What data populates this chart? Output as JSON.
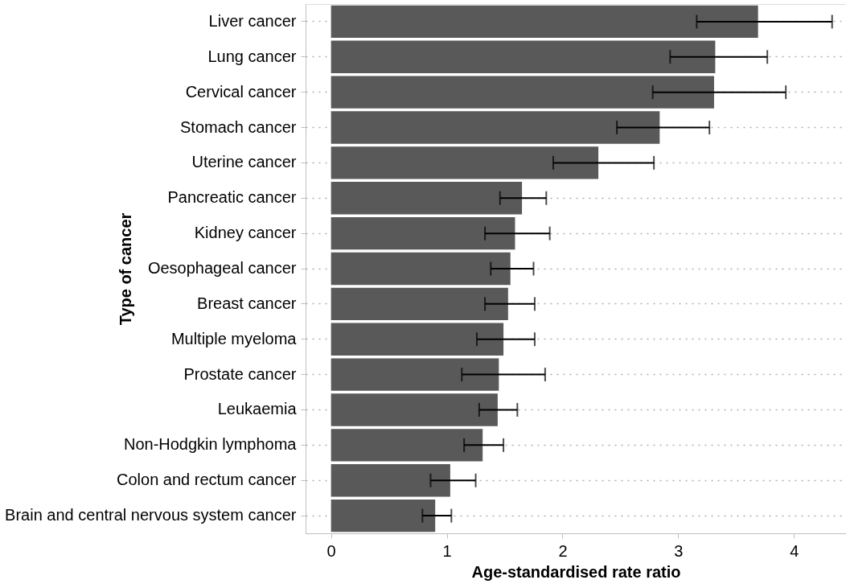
{
  "chart_data": {
    "type": "bar",
    "orientation": "horizontal",
    "xlabel": "Age-standardised rate ratio",
    "ylabel": "Type of cancer",
    "categories": [
      "Liver cancer",
      "Lung cancer",
      "Cervical cancer",
      "Stomach cancer",
      "Uterine cancer",
      "Pancreatic cancer",
      "Kidney cancer",
      "Oesophageal cancer",
      "Breast cancer",
      "Multiple myeloma",
      "Prostate cancer",
      "Leukaemia",
      "Non-Hodgkin lymphoma",
      "Colon and rectum cancer",
      "Brain and central nervous system cancer"
    ],
    "values": [
      3.69,
      3.32,
      3.31,
      2.84,
      2.31,
      1.65,
      1.59,
      1.55,
      1.53,
      1.49,
      1.45,
      1.44,
      1.31,
      1.03,
      0.9
    ],
    "errors": [
      [
        3.16,
        4.33
      ],
      [
        2.93,
        3.77
      ],
      [
        2.78,
        3.93
      ],
      [
        2.47,
        3.27
      ],
      [
        1.92,
        2.79
      ],
      [
        1.46,
        1.86
      ],
      [
        1.33,
        1.89
      ],
      [
        1.38,
        1.75
      ],
      [
        1.33,
        1.76
      ],
      [
        1.26,
        1.76
      ],
      [
        1.13,
        1.85
      ],
      [
        1.28,
        1.61
      ],
      [
        1.15,
        1.49
      ],
      [
        0.86,
        1.25
      ],
      [
        0.79,
        1.04
      ]
    ],
    "color": "#595959",
    "xlim": [
      -0.22,
      4.45
    ],
    "xticks": [
      0,
      1,
      2,
      3,
      4
    ],
    "grid": "y"
  }
}
